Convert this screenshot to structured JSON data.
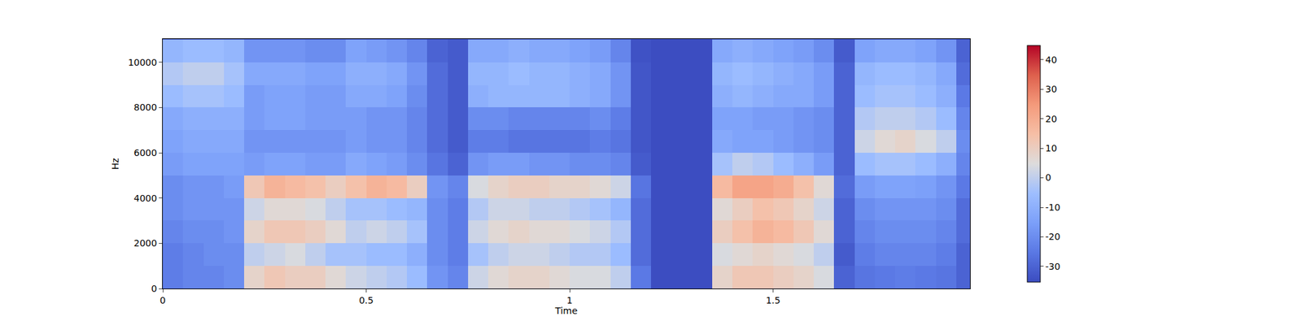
{
  "chart_data": {
    "type": "heatmap",
    "x_label": "Time",
    "y_label": "Hz",
    "xlim": [
      0,
      1.984
    ],
    "ylim": [
      0,
      11025
    ],
    "xticks": [
      0,
      0.5,
      1,
      1.5
    ],
    "yticks": [
      0,
      2000,
      4000,
      6000,
      8000,
      10000
    ],
    "colorbar_range": [
      -35.3,
      44.8
    ],
    "colorbar_ticks": [
      -30,
      -20,
      -10,
      0,
      10,
      20,
      30,
      40
    ],
    "grid": false,
    "x": [
      0.025,
      0.075,
      0.125,
      0.175,
      0.225,
      0.275,
      0.325,
      0.375,
      0.425,
      0.475,
      0.525,
      0.575,
      0.625,
      0.675,
      0.725,
      0.775,
      0.825,
      0.875,
      0.925,
      0.975,
      1.025,
      1.075,
      1.125,
      1.175,
      1.225,
      1.275,
      1.325,
      1.375,
      1.425,
      1.475,
      1.525,
      1.575,
      1.625,
      1.675,
      1.725,
      1.775,
      1.825,
      1.875,
      1.925,
      1.975
    ],
    "y": [
      500,
      1500,
      2500,
      3500,
      4500,
      5500,
      6500,
      7500,
      8500,
      9500,
      10500
    ],
    "z": [
      [
        -24,
        -22,
        -22,
        -20,
        8,
        12,
        10,
        10,
        6,
        2,
        0,
        -2,
        -6,
        -18,
        -22,
        2,
        6,
        8,
        8,
        6,
        4,
        4,
        0,
        -25,
        -35,
        -35,
        -35,
        8,
        12,
        12,
        10,
        8,
        4,
        -30,
        -26,
        -25,
        -24,
        -25,
        -26,
        -30
      ],
      [
        -24,
        -22,
        -20,
        -20,
        0,
        2,
        4,
        0,
        -4,
        -4,
        -6,
        -6,
        -10,
        -20,
        -24,
        -4,
        0,
        2,
        2,
        0,
        -2,
        -2,
        -6,
        -28,
        -35,
        -35,
        -35,
        4,
        6,
        8,
        6,
        4,
        0,
        -32,
        -24,
        -22,
        -22,
        -22,
        -24,
        -30
      ],
      [
        -22,
        -20,
        -20,
        -18,
        8,
        12,
        12,
        10,
        6,
        0,
        2,
        0,
        -4,
        -20,
        -24,
        2,
        6,
        8,
        6,
        6,
        4,
        2,
        -2,
        -28,
        -35,
        -35,
        -35,
        10,
        14,
        18,
        16,
        12,
        6,
        -30,
        -22,
        -20,
        -20,
        -20,
        -22,
        -28
      ],
      [
        -20,
        -18,
        -18,
        -18,
        2,
        6,
        6,
        4,
        0,
        -4,
        -4,
        -6,
        -8,
        -20,
        -24,
        -2,
        2,
        2,
        0,
        0,
        -2,
        -4,
        -8,
        -28,
        -35,
        -35,
        -35,
        6,
        10,
        14,
        12,
        8,
        2,
        -30,
        -20,
        -18,
        -18,
        -18,
        -20,
        -28
      ],
      [
        -20,
        -18,
        -18,
        -16,
        12,
        18,
        16,
        14,
        10,
        14,
        18,
        16,
        10,
        -18,
        -22,
        4,
        8,
        10,
        10,
        8,
        8,
        6,
        2,
        -26,
        -35,
        -35,
        -35,
        16,
        22,
        22,
        20,
        14,
        6,
        -28,
        -16,
        -14,
        -14,
        -15,
        -18,
        -25
      ],
      [
        -16,
        -14,
        -14,
        -14,
        -16,
        -14,
        -14,
        -16,
        -16,
        -12,
        -14,
        -16,
        -20,
        -26,
        -30,
        -18,
        -16,
        -16,
        -18,
        -18,
        -20,
        -20,
        -22,
        -32,
        -35,
        -35,
        -35,
        -4,
        0,
        -2,
        -6,
        -10,
        -16,
        -30,
        -6,
        -4,
        -4,
        -6,
        -10,
        -22
      ],
      [
        -14,
        -12,
        -12,
        -12,
        -18,
        -18,
        -18,
        -18,
        -18,
        -16,
        -18,
        -18,
        -22,
        -28,
        -32,
        -24,
        -24,
        -26,
        -26,
        -26,
        -26,
        -24,
        -26,
        -33,
        -35,
        -35,
        -35,
        -12,
        -14,
        -14,
        -16,
        -18,
        -20,
        -30,
        2,
        6,
        8,
        4,
        0,
        -20
      ],
      [
        -12,
        -10,
        -10,
        -10,
        -16,
        -14,
        -14,
        -16,
        -16,
        -16,
        -18,
        -18,
        -22,
        -28,
        -32,
        -20,
        -20,
        -22,
        -22,
        -22,
        -22,
        -20,
        -24,
        -33,
        -35,
        -35,
        -35,
        -14,
        -14,
        -16,
        -16,
        -18,
        -20,
        -30,
        -2,
        0,
        0,
        -2,
        -6,
        -22
      ],
      [
        -6,
        -4,
        -4,
        -6,
        -16,
        -14,
        -14,
        -16,
        -16,
        -12,
        -12,
        -14,
        -20,
        -28,
        -32,
        -10,
        -8,
        -8,
        -8,
        -8,
        -10,
        -12,
        -18,
        -33,
        -35,
        -35,
        -35,
        -10,
        -8,
        -10,
        -12,
        -12,
        -16,
        -30,
        -6,
        -4,
        -4,
        -6,
        -10,
        -25
      ],
      [
        -2,
        0,
        0,
        -4,
        -12,
        -12,
        -12,
        -14,
        -14,
        -10,
        -10,
        -12,
        -18,
        -28,
        -32,
        -8,
        -8,
        -6,
        -8,
        -8,
        -10,
        -12,
        -18,
        -33,
        -35,
        -35,
        -35,
        -8,
        -6,
        -8,
        -10,
        -12,
        -16,
        -30,
        -8,
        -6,
        -6,
        -8,
        -12,
        -28
      ],
      [
        -8,
        -6,
        -6,
        -8,
        -18,
        -18,
        -18,
        -20,
        -20,
        -14,
        -16,
        -18,
        -22,
        -30,
        -32,
        -12,
        -12,
        -10,
        -12,
        -12,
        -14,
        -16,
        -22,
        -34,
        -35,
        -35,
        -35,
        -12,
        -10,
        -12,
        -14,
        -16,
        -20,
        -32,
        -14,
        -12,
        -12,
        -14,
        -18,
        -30
      ]
    ]
  }
}
